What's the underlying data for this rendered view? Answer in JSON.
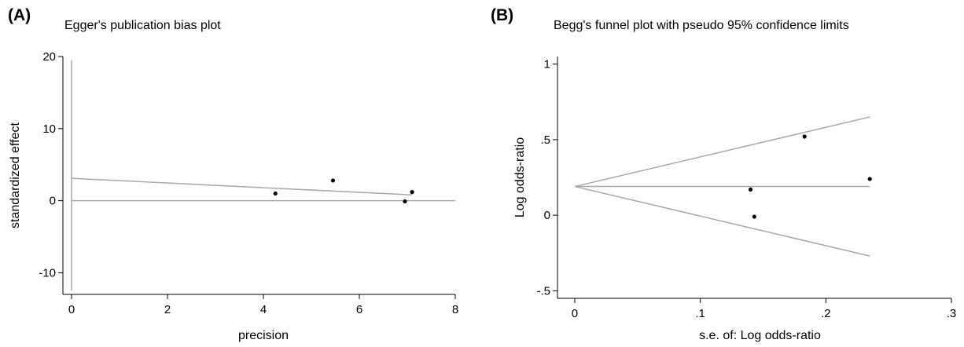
{
  "chart_data": [
    {
      "type": "scatter",
      "panel_label": "(A)",
      "title": "Egger's publication bias plot",
      "xlabel": "precision",
      "ylabel": "standardized effect",
      "xlim": [
        0,
        8
      ],
      "ylim": [
        -13,
        20
      ],
      "xticks": [
        "0",
        "2",
        "4",
        "6",
        "8"
      ],
      "yticks": [
        "-10",
        "0",
        "10",
        "20"
      ],
      "x_tick_values": [
        0,
        2,
        4,
        6,
        8
      ],
      "y_tick_values": [
        -10,
        0,
        10,
        20
      ],
      "points": [
        {
          "x": 4.25,
          "y": 1.0
        },
        {
          "x": 5.45,
          "y": 2.8
        },
        {
          "x": 6.95,
          "y": -0.1
        },
        {
          "x": 7.1,
          "y": 1.2
        }
      ],
      "lines": [
        {
          "x": [
            0,
            7.1
          ],
          "y": [
            3.1,
            0.8
          ]
        },
        {
          "x": [
            0,
            8
          ],
          "y": [
            0,
            0
          ]
        }
      ],
      "vertical_line": {
        "x": 0,
        "y": [
          -12.5,
          19.5
        ]
      },
      "grid": false
    },
    {
      "type": "scatter",
      "panel_label": "(B)",
      "title": "Begg's funnel plot with pseudo 95% confidence limits",
      "xlabel": "s.e. of: Log odds-ratio",
      "ylabel": "Log odds-ratio",
      "xlim": [
        -0.005,
        0.3
      ],
      "ylim": [
        -0.55,
        1.05
      ],
      "xticks": [
        "0",
        ".1",
        ".2",
        ".3"
      ],
      "yticks": [
        "-.5",
        "0",
        ".5",
        "1"
      ],
      "x_tick_values": [
        0,
        0.1,
        0.2,
        0.3
      ],
      "y_tick_values": [
        -0.5,
        0,
        0.5,
        1
      ],
      "points": [
        {
          "x": 0.14,
          "y": 0.17
        },
        {
          "x": 0.143,
          "y": -0.01
        },
        {
          "x": 0.183,
          "y": 0.52
        },
        {
          "x": 0.235,
          "y": 0.24
        }
      ],
      "lines": [
        {
          "x": [
            0,
            0.235
          ],
          "y": [
            0.19,
            0.65
          ]
        },
        {
          "x": [
            0,
            0.235
          ],
          "y": [
            0.19,
            0.19
          ]
        },
        {
          "x": [
            0,
            0.235
          ],
          "y": [
            0.19,
            -0.27
          ]
        }
      ],
      "grid": false
    }
  ]
}
